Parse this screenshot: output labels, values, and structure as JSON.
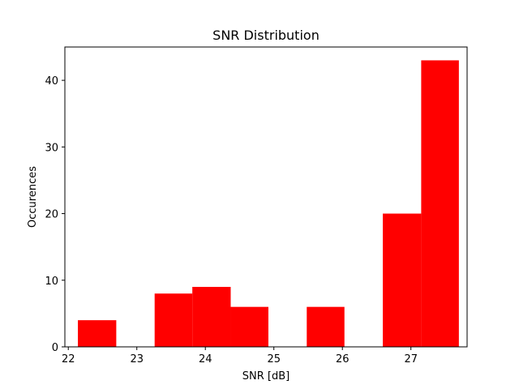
{
  "chart_data": {
    "type": "bar",
    "title": "SNR Distribution",
    "xlabel": "SNR [dB]",
    "ylabel": "Occurences",
    "bar_color": "#ff0000",
    "xlim": [
      21.95,
      27.82
    ],
    "ylim": [
      0,
      45
    ],
    "xticks": [
      22,
      23,
      24,
      25,
      26,
      27
    ],
    "yticks": [
      0,
      10,
      20,
      30,
      40
    ],
    "grid": false,
    "bins": [
      {
        "start": 22.14,
        "end": 22.7,
        "count": 4
      },
      {
        "start": 22.7,
        "end": 23.26,
        "count": 0
      },
      {
        "start": 23.26,
        "end": 23.81,
        "count": 8
      },
      {
        "start": 23.81,
        "end": 24.37,
        "count": 9
      },
      {
        "start": 24.37,
        "end": 24.92,
        "count": 6
      },
      {
        "start": 24.92,
        "end": 25.48,
        "count": 0
      },
      {
        "start": 25.48,
        "end": 26.03,
        "count": 6
      },
      {
        "start": 26.03,
        "end": 26.59,
        "count": 0
      },
      {
        "start": 26.59,
        "end": 27.15,
        "count": 20
      },
      {
        "start": 27.15,
        "end": 27.7,
        "count": 43
      }
    ]
  }
}
